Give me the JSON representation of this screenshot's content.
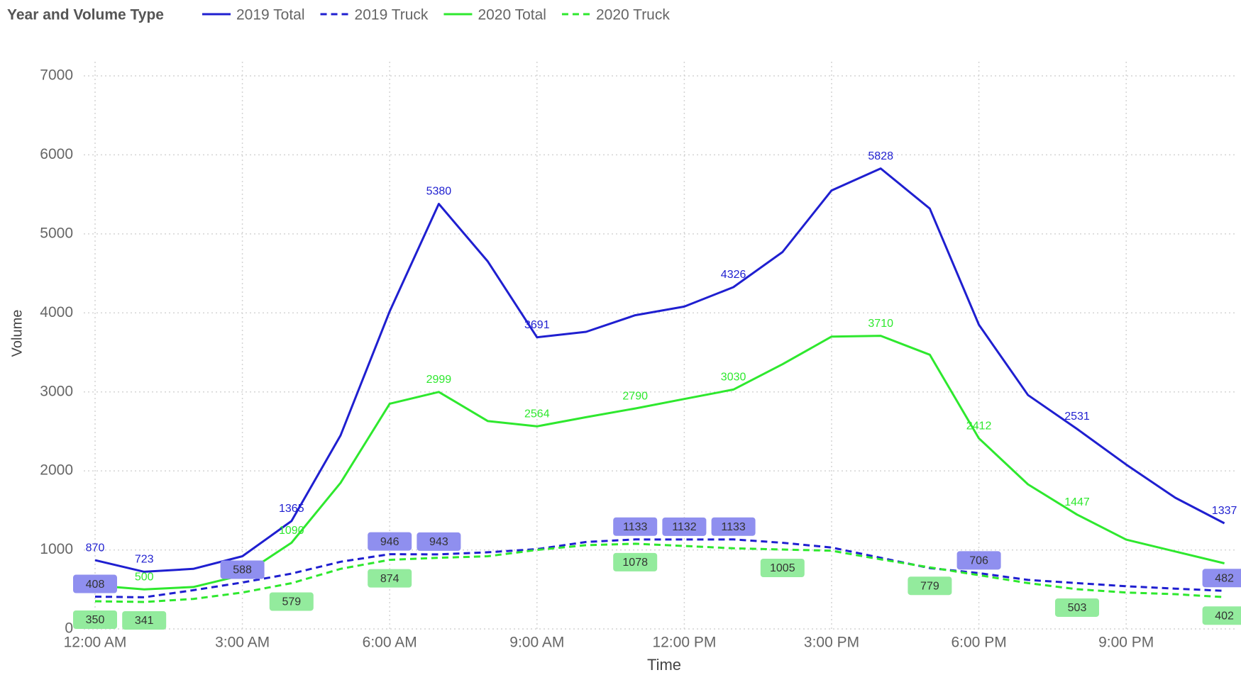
{
  "chart_data": {
    "type": "line",
    "legend_title": "Year and Volume Type",
    "x_label": "Time",
    "y_label": "Volume",
    "categories": [
      "12:00 AM",
      null,
      null,
      "3:00 AM",
      null,
      null,
      "6:00 AM",
      null,
      null,
      "9:00 AM",
      null,
      null,
      "12:00 PM",
      null,
      null,
      "3:00 PM",
      null,
      null,
      "6:00 PM",
      null,
      null,
      "9:00 PM",
      null,
      null
    ],
    "ylim": [
      0,
      7000
    ],
    "yticks": [
      0,
      1000,
      2000,
      3000,
      4000,
      5000,
      6000,
      7000
    ],
    "grid": true,
    "legend": "top-left",
    "series": [
      {
        "name": "2019 Total",
        "color": "#1f1fd0",
        "dash": false,
        "label_position": "above",
        "label_bg": null,
        "values": [
          870,
          723,
          760,
          920,
          1365,
          2450,
          4020,
          5380,
          4650,
          3691,
          3760,
          3970,
          4080,
          4326,
          4770,
          5550,
          5828,
          5320,
          3850,
          2960,
          2531,
          2080,
          1660,
          1337
        ],
        "label_points": [
          0,
          1,
          4,
          7,
          9,
          13,
          16,
          20,
          23
        ]
      },
      {
        "name": "2019 Truck",
        "color": "#1f1fd0",
        "dash": true,
        "label_position": "above",
        "label_bg": "#8f8fef",
        "values": [
          408,
          400,
          490,
          588,
          700,
          850,
          946,
          943,
          970,
          1010,
          1100,
          1133,
          1132,
          1133,
          1090,
          1030,
          900,
          770,
          706,
          620,
          580,
          540,
          510,
          482
        ],
        "label_points": [
          0,
          3,
          6,
          7,
          11,
          12,
          13,
          18,
          23
        ]
      },
      {
        "name": "2020 Total",
        "color": "#2ee82e",
        "dash": false,
        "label_position": "above",
        "label_bg": null,
        "values": [
          550,
          500,
          530,
          680,
          1090,
          1850,
          2850,
          2999,
          2630,
          2564,
          2680,
          2790,
          2910,
          3030,
          3350,
          3700,
          3710,
          3470,
          2412,
          1830,
          1447,
          1130,
          980,
          830
        ],
        "label_points": [
          1,
          4,
          7,
          9,
          11,
          13,
          16,
          18,
          20
        ]
      },
      {
        "name": "2020 Truck",
        "color": "#2ee82e",
        "dash": true,
        "label_position": "below",
        "label_bg": "#93eb9d",
        "values": [
          350,
          341,
          380,
          460,
          579,
          760,
          874,
          900,
          920,
          1000,
          1060,
          1078,
          1050,
          1020,
          1005,
          990,
          880,
          779,
          680,
          580,
          503,
          460,
          440,
          402
        ],
        "label_points": [
          0,
          1,
          4,
          6,
          11,
          14,
          17,
          20,
          23
        ]
      }
    ]
  }
}
